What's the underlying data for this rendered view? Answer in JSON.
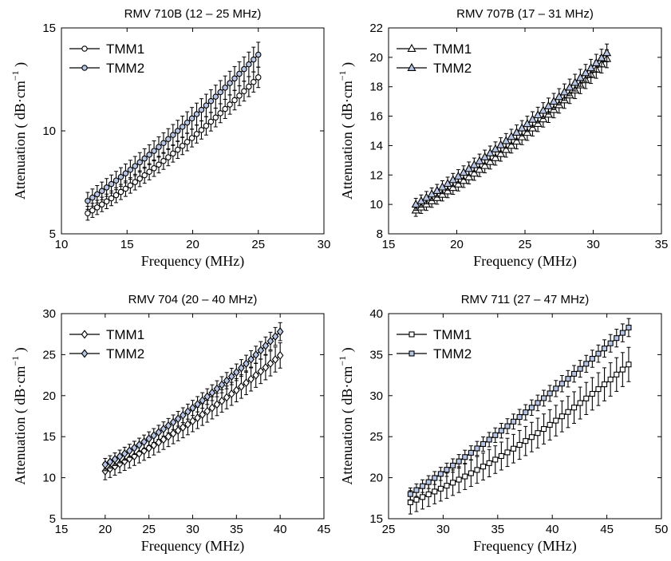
{
  "chart_data": [
    {
      "type": "line",
      "title": "RMV 710B (12 – 25 MHz)",
      "xlabel": "Frequency (MHz)",
      "ylabel": "Attenuation ( dB·cm",
      "ylabel_sup": "−1",
      "ylabel_close": ")",
      "xlim": [
        10,
        30
      ],
      "ylim": [
        5,
        15
      ],
      "xticks": [
        10,
        15,
        20,
        25,
        30
      ],
      "yticks": [
        5,
        10,
        15
      ],
      "marker": "circle",
      "x_range": [
        12,
        25
      ],
      "legend_position": "top-left",
      "grid": false,
      "series": [
        {
          "name": "TMM1",
          "fill": "#ffffff",
          "start": 6.0,
          "mid": 8.9,
          "end": 12.6,
          "err": 0.45
        },
        {
          "name": "TMM2",
          "fill": "#b8c6e6",
          "start": 6.6,
          "mid": 9.8,
          "end": 13.7,
          "err": 0.55
        }
      ]
    },
    {
      "type": "line",
      "title": "RMV 707B (17 – 31 MHz)",
      "xlabel": "Frequency (MHz)",
      "ylabel": "Attenuation ( dB·cm",
      "ylabel_sup": "−1",
      "ylabel_close": ")",
      "xlim": [
        15,
        35
      ],
      "ylim": [
        8,
        22
      ],
      "xticks": [
        15,
        20,
        25,
        30,
        35
      ],
      "yticks": [
        8,
        10,
        12,
        14,
        16,
        18,
        20,
        22
      ],
      "marker": "triangle",
      "x_range": [
        17,
        31
      ],
      "legend_position": "top-left",
      "grid": false,
      "series": [
        {
          "name": "TMM1",
          "fill": "#ffffff",
          "start": 9.6,
          "mid": 14.0,
          "end": 19.9,
          "err": 0.55
        },
        {
          "name": "TMM2",
          "fill": "#b8c6e6",
          "start": 10.0,
          "mid": 14.6,
          "end": 20.3,
          "err": 0.55
        }
      ]
    },
    {
      "type": "line",
      "title": "RMV 704  (20 – 40 MHz)",
      "xlabel": "Frequency (MHz)",
      "ylabel": "Attenuation ( dB·cm",
      "ylabel_sup": "−1",
      "ylabel_close": ")",
      "xlim": [
        15,
        45
      ],
      "ylim": [
        5,
        30
      ],
      "xticks": [
        15,
        20,
        25,
        30,
        35,
        40,
        45
      ],
      "yticks": [
        5,
        10,
        15,
        20,
        25,
        30
      ],
      "marker": "diamond",
      "x_range": [
        20,
        40
      ],
      "legend_position": "top-left",
      "grid": false,
      "series": [
        {
          "name": "TMM1",
          "fill": "#ffffff",
          "start": 10.8,
          "mid": 16.9,
          "end": 24.9,
          "err": 1.4
        },
        {
          "name": "TMM2",
          "fill": "#b8c6e6",
          "start": 11.6,
          "mid": 18.5,
          "end": 27.8,
          "err": 1.0
        }
      ]
    },
    {
      "type": "line",
      "title": "RMV 711  (27 – 47 MHz)",
      "xlabel": "Frequency (MHz)",
      "ylabel": "Attenuation ( dB·cm",
      "ylabel_sup": "−1",
      "ylabel_close": ")",
      "xlim": [
        25,
        50
      ],
      "ylim": [
        15,
        40
      ],
      "xticks": [
        25,
        30,
        35,
        40,
        45,
        50
      ],
      "yticks": [
        15,
        20,
        25,
        30,
        35,
        40
      ],
      "marker": "square",
      "x_range": [
        27,
        47
      ],
      "legend_position": "top-left",
      "grid": false,
      "series": [
        {
          "name": "TMM1",
          "fill": "#ffffff",
          "start": 17.0,
          "mid": 24.0,
          "end": 33.8,
          "err": 1.9
        },
        {
          "name": "TMM2",
          "fill": "#b8c6e6",
          "start": 18.0,
          "mid": 27.4,
          "end": 38.3,
          "err": 1.0
        }
      ]
    }
  ]
}
